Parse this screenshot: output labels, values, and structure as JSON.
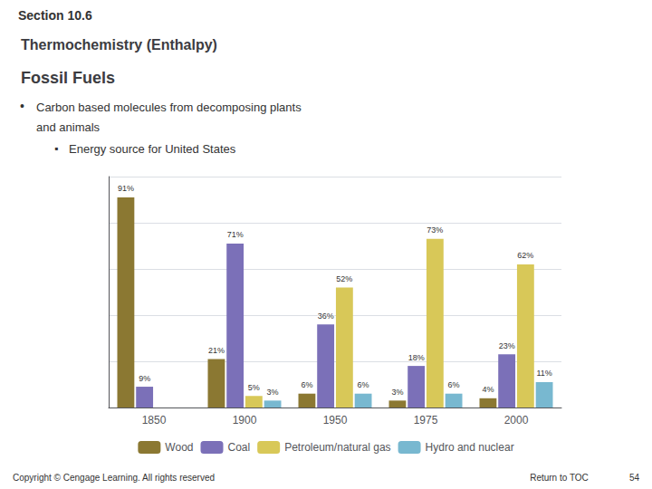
{
  "chart_data": {
    "type": "bar",
    "title": "Fossil Fuels",
    "subtitle": "Thermochemistry (Enthalpy)",
    "annotations": [
      "Section 10.6",
      "•",
      "Carbon based molecules from decomposing plants",
      "and animals",
      "▪",
      "Energy source for United States",
      "Copyright © Cengage Learning. All rights reserved",
      "Return to TOC",
      "54"
    ],
    "categories": [
      "1850",
      "1900",
      "1950",
      "1975",
      "2000"
    ],
    "series": [
      {
        "name": "Wood",
        "color": "#8b7832",
        "values": [
          91,
          21,
          6,
          3,
          4
        ],
        "value_labels": [
          "91%",
          "21%",
          "6%",
          "3%",
          "4%"
        ]
      },
      {
        "name": "Coal",
        "color": "#7b70b8",
        "values": [
          9,
          71,
          36,
          18,
          23
        ],
        "value_labels": [
          "9%",
          "71%",
          "36%",
          "18%",
          "23%"
        ]
      },
      {
        "name": "Petroleum/natural gas",
        "color": "#d8c858",
        "values": [
          0,
          5,
          52,
          73,
          62
        ],
        "value_labels": [
          null,
          "5%",
          "52%",
          "73%",
          "62%"
        ]
      },
      {
        "name": "Hydro and nuclear",
        "color": "#78b8d0",
        "values": [
          0,
          3,
          6,
          6,
          11
        ],
        "value_labels": [
          null,
          "3%",
          "6%",
          "6%",
          "11%"
        ]
      }
    ],
    "ylim": [
      0,
      100
    ],
    "yticks": [
      0,
      20,
      40,
      60,
      80,
      100
    ],
    "grid": true,
    "tick_labels": "x",
    "data_labels": true,
    "legend": "bottom"
  }
}
